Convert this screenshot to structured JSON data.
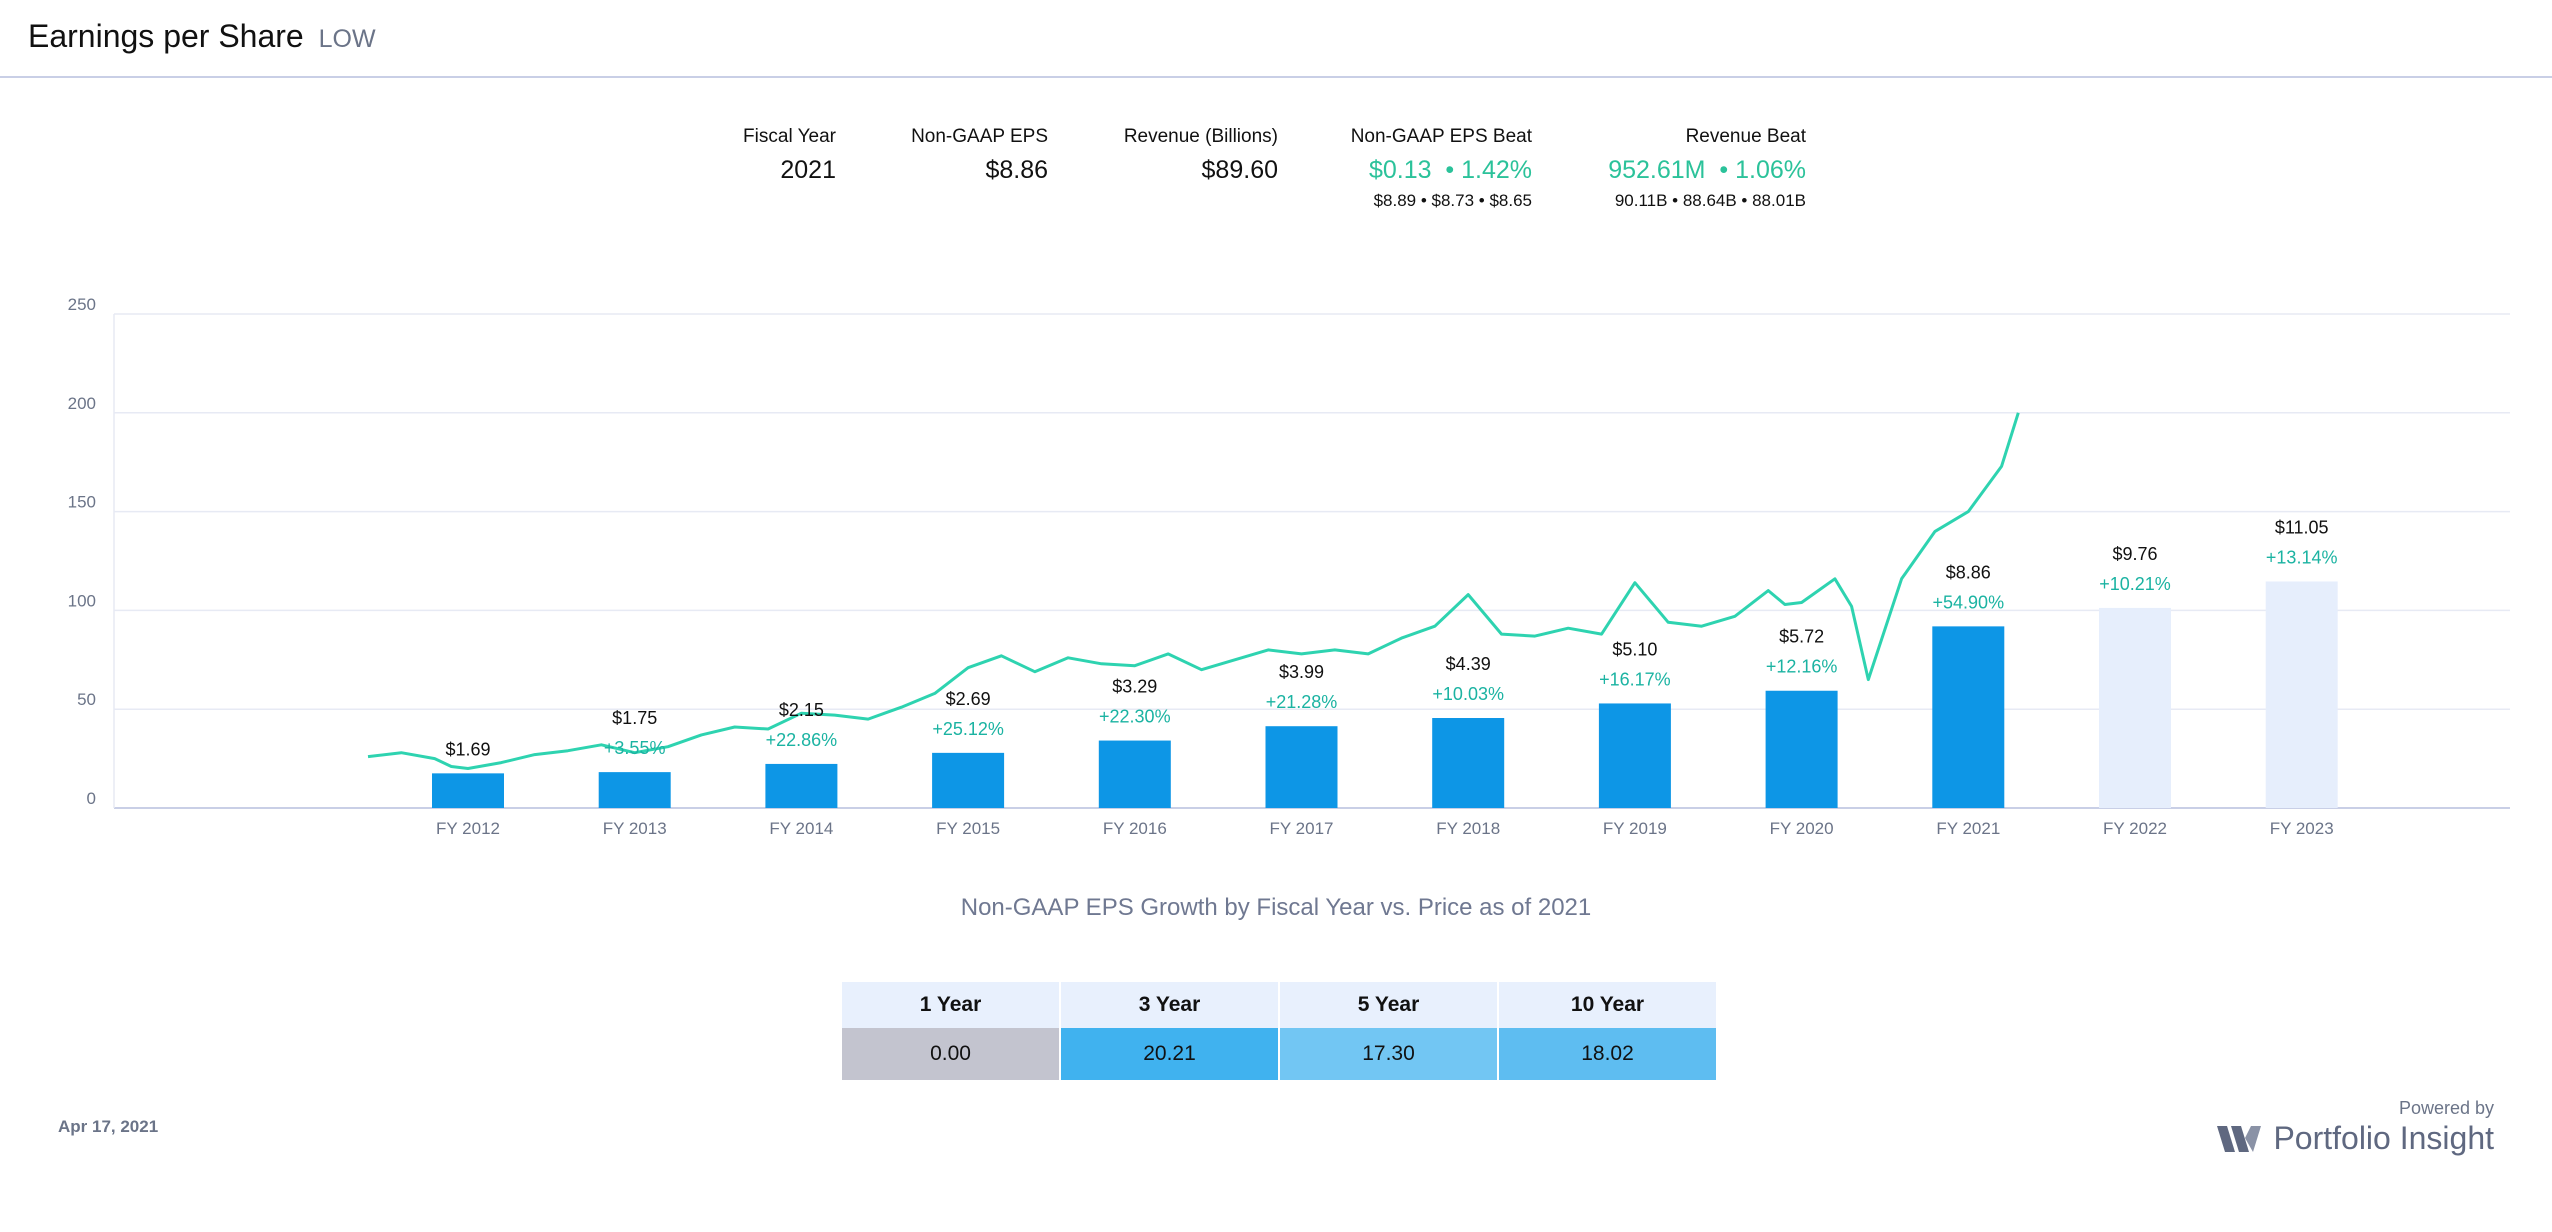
{
  "header": {
    "title": "Earnings per Share",
    "ticker": "LOW"
  },
  "stats": {
    "fiscal_year": {
      "label": "Fiscal Year",
      "value": "2021"
    },
    "eps": {
      "label": "Non-GAAP EPS",
      "value": "$8.86"
    },
    "revenue": {
      "label": "Revenue (Billions)",
      "value": "$89.60"
    },
    "eps_beat": {
      "label": "Non-GAAP EPS Beat",
      "value": "$0.13  • 1.42%",
      "detail": "$8.89 • $8.73 • $8.65"
    },
    "rev_beat": {
      "label": "Revenue Beat",
      "value": "952.61M  • 1.06%",
      "detail": "90.11B • 88.64B • 88.01B"
    }
  },
  "colors": {
    "bar": "#0d96e6",
    "forecast": "#e6eefc",
    "price": "#2ed3b0",
    "growth_text": "#1bb3a2"
  },
  "chart_data": {
    "type": "bar",
    "categories": [
      "FY 2012",
      "FY 2013",
      "FY 2014",
      "FY 2015",
      "FY 2016",
      "FY 2017",
      "FY 2018",
      "FY 2019",
      "FY 2020",
      "FY 2021",
      "FY 2022",
      "FY 2023"
    ],
    "values": [
      1.69,
      1.75,
      2.15,
      2.69,
      3.29,
      3.99,
      4.39,
      5.1,
      5.72,
      8.86,
      9.76,
      11.05
    ],
    "value_labels": [
      "$1.69",
      "$1.75",
      "$2.15",
      "$2.69",
      "$3.29",
      "$3.99",
      "$4.39",
      "$5.10",
      "$5.72",
      "$8.86",
      "$9.76",
      "$11.05"
    ],
    "growth_labels": [
      "",
      "+3.55%",
      "+22.86%",
      "+25.12%",
      "+22.30%",
      "+21.28%",
      "+10.03%",
      "+16.17%",
      "+12.16%",
      "+54.90%",
      "+10.21%",
      "+13.14%"
    ],
    "forecast": [
      false,
      false,
      false,
      false,
      false,
      false,
      false,
      false,
      false,
      false,
      true,
      true
    ],
    "y_ticks": [
      "0",
      "50",
      "100",
      "150",
      "200",
      "250"
    ],
    "ylim": [
      0,
      250
    ],
    "grid": true,
    "price_series": {
      "x": [
        2011.4,
        2011.6,
        2011.8,
        2011.9,
        2012.0,
        2012.2,
        2012.4,
        2012.6,
        2012.8,
        2013.0,
        2013.2,
        2013.4,
        2013.6,
        2013.8,
        2014.0,
        2014.2,
        2014.4,
        2014.6,
        2014.8,
        2015.0,
        2015.2,
        2015.4,
        2015.6,
        2015.8,
        2016.0,
        2016.2,
        2016.4,
        2016.6,
        2016.8,
        2017.0,
        2017.2,
        2017.4,
        2017.6,
        2017.8,
        2018.0,
        2018.2,
        2018.4,
        2018.6,
        2018.8,
        2019.0,
        2019.2,
        2019.4,
        2019.6,
        2019.8,
        2019.9,
        2020.0,
        2020.1,
        2020.2,
        2020.3,
        2020.4,
        2020.6,
        2020.8,
        2021.0,
        2021.2,
        2021.3
      ],
      "y": [
        26,
        28,
        25,
        21,
        20,
        23,
        27,
        29,
        32,
        28,
        31,
        37,
        41,
        40,
        48,
        47,
        45,
        51,
        58,
        71,
        77,
        69,
        76,
        73,
        72,
        78,
        70,
        75,
        80,
        78,
        80,
        78,
        86,
        92,
        108,
        88,
        87,
        91,
        88,
        114,
        94,
        92,
        97,
        110,
        103,
        104,
        110,
        116,
        102,
        65,
        116,
        140,
        150,
        173,
        200
      ]
    }
  },
  "chart_caption": "Non-GAAP EPS Growth by Fiscal Year vs. Price as of 2021",
  "growth_table": {
    "headers": [
      "1 Year",
      "3 Year",
      "5 Year",
      "10 Year"
    ],
    "values": [
      "0.00",
      "20.21",
      "17.30",
      "18.02"
    ],
    "cell_colors": [
      "#c3c4cf",
      "#40b2ef",
      "#72c6f3",
      "#5ebdf1"
    ]
  },
  "date": "Apr 17, 2021",
  "powered_by": "Powered by",
  "brand": "Portfolio Insight"
}
